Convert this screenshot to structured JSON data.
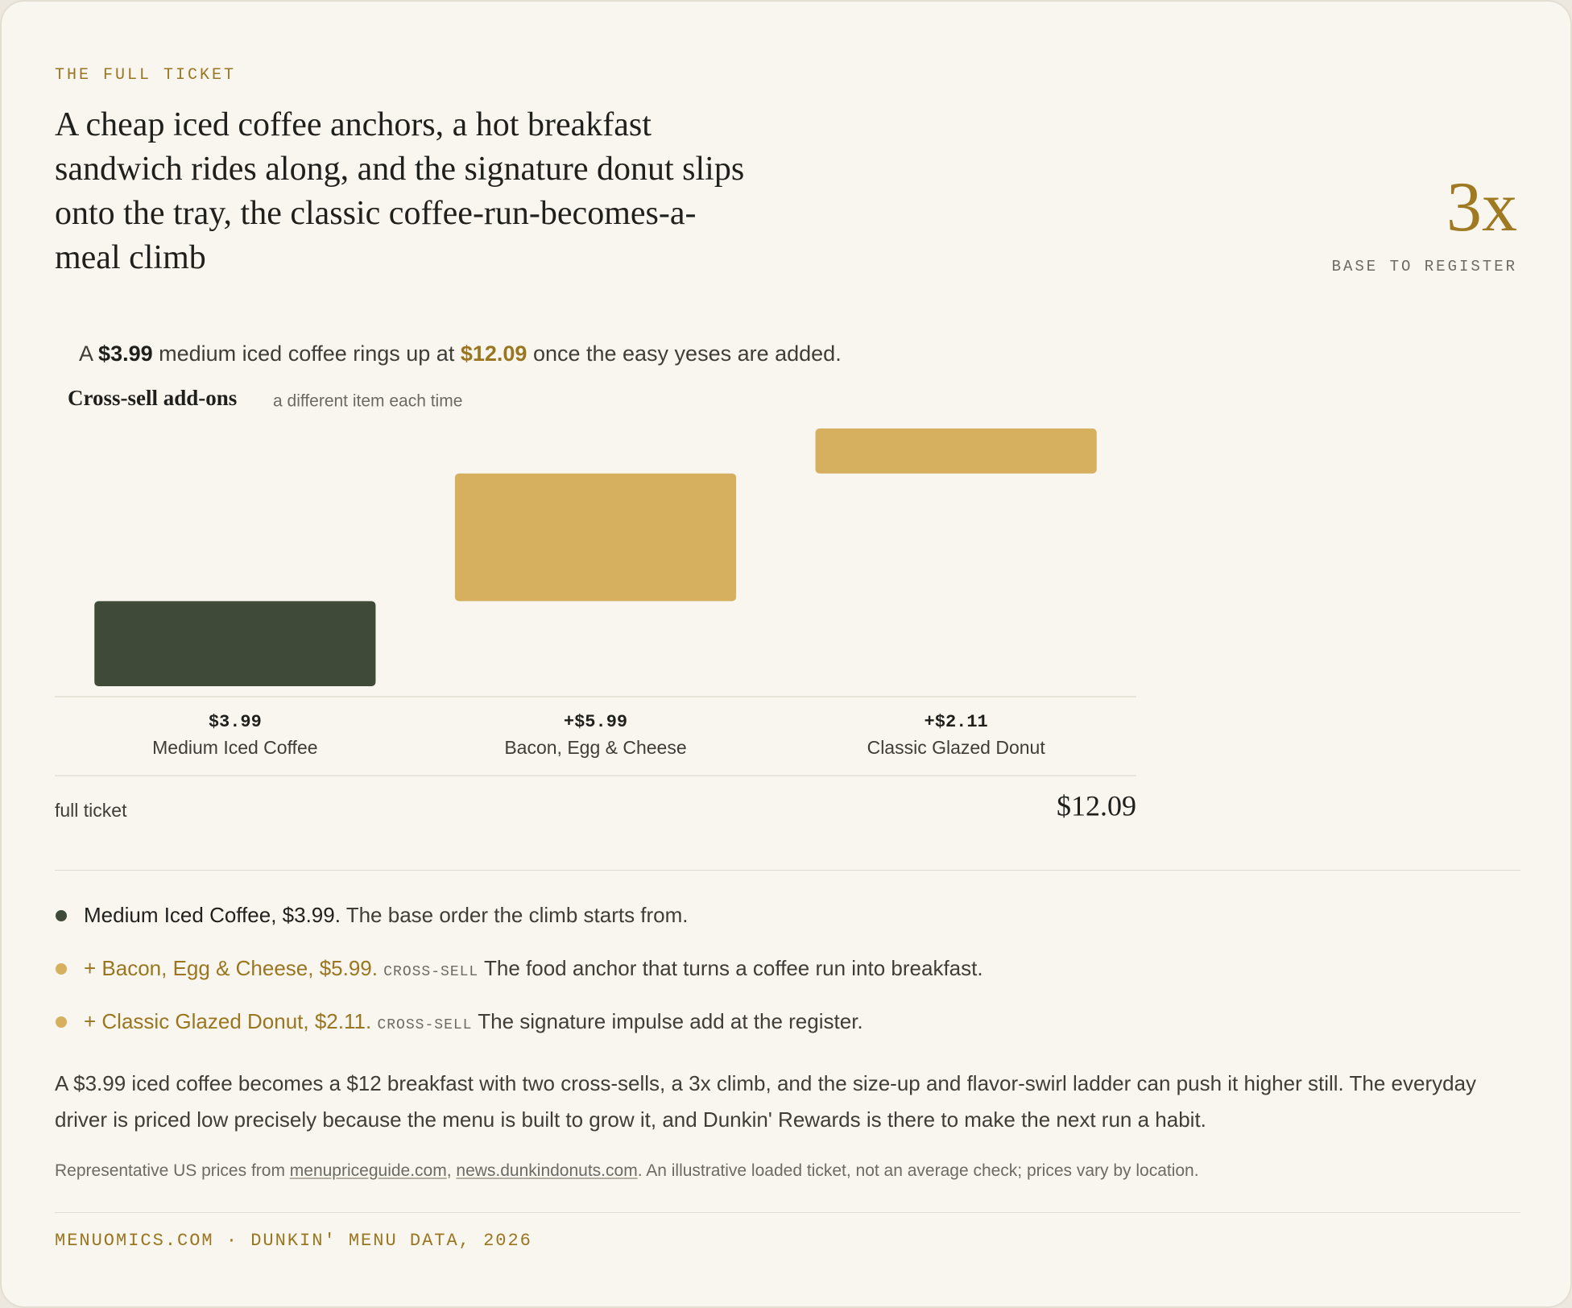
{
  "eyebrow": "THE FULL TICKET",
  "headline": "A cheap iced coffee anchors, a hot breakfast sandwich rides along, and the signature donut slips onto the tray, the classic coffee-run-becomes-a-meal climb",
  "stat": {
    "value": "3x",
    "label": "BASE TO REGISTER"
  },
  "dek": [
    "A ",
    "$3.99",
    " medium iced coffee rings up at ",
    "$12.09",
    " once the easy yeses are added."
  ],
  "chart_data": {
    "type": "waterfall",
    "title": "Cross-sell add-ons",
    "subtitle": "a different item each time",
    "categories": [
      "Medium Iced Coffee",
      "Bacon, Egg & Cheese",
      "Classic Glazed Donut"
    ],
    "values": [
      3.99,
      5.99,
      2.11
    ],
    "value_labels": [
      "$3.99",
      "+$5.99",
      "+$2.11"
    ],
    "base_color": "#3f4a38",
    "addon_color": "#d6b05e",
    "total_name": "full ticket",
    "total": 12.09,
    "total_label": "$12.09"
  },
  "notes": [
    {
      "label": "Medium Iced Coffee, $3.99.",
      "text": "The base order the climb starts from."
    },
    {
      "label": "+ Bacon, Egg & Cheese, $5.99.",
      "tag": "CROSS-SELL",
      "text": "The food anchor that turns a coffee run into breakfast."
    },
    {
      "label": "+ Classic Glazed Donut, $2.11.",
      "tag": "CROSS-SELL",
      "text": "The signature impulse add at the register."
    }
  ],
  "body": "A $3.99 iced coffee becomes a $12 breakfast with two cross-sells, a 3x climb, and the size-up and flavor-swirl ladder can push it higher still. The everyday driver is priced low precisely because the menu is built to grow it, and Dunkin' Rewards is there to make the next run a habit.",
  "footnote": [
    "Representative US prices from ",
    "menupriceguide.com",
    ", ",
    "news.dunkindonuts.com",
    ". An illustrative loaded ticket, not an average check; prices vary by location."
  ],
  "footer": "MENUOMICS.COM · DUNKIN' MENU DATA, 2026"
}
